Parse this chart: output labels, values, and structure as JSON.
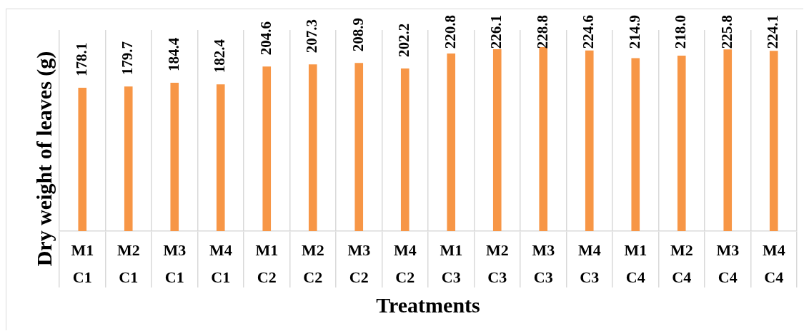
{
  "chart_data": {
    "type": "bar",
    "xlabel": "Treatments",
    "ylabel": "Dry weight of leaves (g)",
    "categories": [
      "M1\nC1",
      "M2\nC1",
      "M3\nC1",
      "M4\nC1",
      "M1\nC2",
      "M2\nC2",
      "M3\nC2",
      "M4\nC2",
      "M1\nC3",
      "M2\nC3",
      "M3\nC3",
      "M4\nC3",
      "M1\nC4",
      "M2\nC4",
      "M3\nC4",
      "M4\nC4"
    ],
    "values": [
      178.1,
      179.7,
      184.4,
      182.4,
      204.6,
      207.3,
      208.9,
      202.2,
      220.8,
      226.1,
      228.8,
      224.6,
      214.9,
      218.0,
      225.8,
      224.1
    ],
    "value_labels": [
      "178.1",
      "179.7",
      "184.4",
      "182.4",
      "204.6",
      "207.3",
      "208.9",
      "202.2",
      "220.8",
      "226.1",
      "228.8",
      "224.6",
      "214.9",
      "218.0",
      "225.8",
      "224.1"
    ],
    "color": "#f79646",
    "ylim": [
      0,
      250
    ],
    "grid": "x",
    "tick_labels": "x"
  }
}
